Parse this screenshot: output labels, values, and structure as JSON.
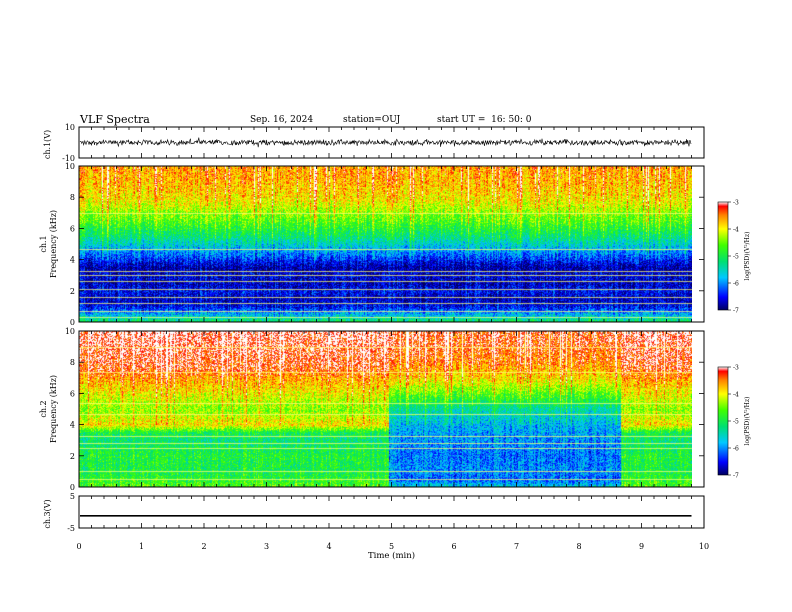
{
  "header": {
    "title": "VLF Spectra",
    "date": "Sep. 16, 2024",
    "station": "station=OUJ",
    "start": "start UT =  16: 50: 0"
  },
  "chart_data": [
    {
      "id": "ch1-waveform",
      "type": "line",
      "ylabel": "ch.1(V)",
      "ylim": [
        -10,
        10
      ],
      "y_ticks": [
        "10",
        "-10"
      ],
      "description_values": {
        "baseline": 0,
        "amplitude_peak": 2
      },
      "x_range": [
        0,
        9.8
      ]
    },
    {
      "id": "ch1-spectrogram",
      "type": "heatmap",
      "ylabel_line1": "ch.1",
      "ylabel_line2": "Frequency (kHz)",
      "ylim": [
        0,
        10
      ],
      "y_ticks": [
        "0",
        "2",
        "4",
        "6",
        "8",
        "10"
      ],
      "x_range": [
        0,
        9.8
      ],
      "colorbar": {
        "label": "log(PSD)(V²/Hz)",
        "range": [
          -7,
          -3
        ],
        "ticks": [
          "-3",
          "-4",
          "-5",
          "-6",
          "-7"
        ]
      },
      "profile_freq_khz": [
        0,
        0.5,
        1,
        1.5,
        2,
        2.5,
        3,
        3.5,
        4,
        4.5,
        5,
        5.5,
        6,
        6.5,
        7,
        7.5,
        8,
        9,
        10
      ],
      "profile_log_psd": [
        -5.0,
        -5.8,
        -6.5,
        -6.7,
        -6.5,
        -6.7,
        -6.6,
        -6.8,
        -6.4,
        -6.0,
        -5.6,
        -5.2,
        -4.9,
        -4.6,
        -4.4,
        -4.1,
        -3.9,
        -3.7,
        -3.6
      ],
      "lines_khz": [
        0.3,
        0.7,
        1.2,
        1.6,
        2.1,
        2.6,
        3.0,
        3.3,
        4.7,
        7.0
      ]
    },
    {
      "id": "ch2-spectrogram",
      "type": "heatmap",
      "ylabel_line1": "ch.2",
      "ylabel_line2": "Frequency (kHz)",
      "ylim": [
        0,
        10
      ],
      "y_ticks": [
        "0",
        "2",
        "4",
        "6",
        "8",
        "10"
      ],
      "x_range": [
        0,
        9.8
      ],
      "colorbar": {
        "label": "log(PSD)(V²/Hz)",
        "range": [
          -7,
          -3
        ],
        "ticks": [
          "-3",
          "-4",
          "-5",
          "-6",
          "-7"
        ]
      },
      "segments": [
        {
          "t_start": 0,
          "t_end": 4.95,
          "profile_freq_khz": [
            0,
            1,
            2,
            3,
            3.5,
            4,
            5,
            6,
            7,
            7.5,
            8,
            9,
            10
          ],
          "profile_log_psd": [
            -4.6,
            -5.0,
            -4.9,
            -5.2,
            -5.0,
            -3.9,
            -4.4,
            -4.0,
            -3.6,
            -3.3,
            -3.2,
            -3.1,
            -3.0
          ]
        },
        {
          "t_start": 4.95,
          "t_end": 8.65,
          "profile_freq_khz": [
            0,
            0.5,
            1,
            2,
            3,
            3.5,
            4,
            5,
            6,
            7,
            8,
            9,
            10
          ],
          "profile_log_psd": [
            -5.6,
            -6.2,
            -6.0,
            -6.1,
            -6.0,
            -5.9,
            -5.8,
            -5.4,
            -4.6,
            -3.9,
            -3.5,
            -3.3,
            -3.2
          ]
        },
        {
          "t_start": 8.65,
          "t_end": 9.8,
          "profile_freq_khz": [
            0,
            1,
            2,
            3,
            3.5,
            4,
            5,
            6,
            7,
            7.5,
            8,
            9,
            10
          ],
          "profile_log_psd": [
            -4.6,
            -5.0,
            -4.9,
            -5.2,
            -5.0,
            -3.9,
            -4.4,
            -4.0,
            -3.6,
            -3.3,
            -3.2,
            -3.1,
            -3.0
          ]
        }
      ],
      "lines_khz": [
        0.5,
        1.0,
        2.5,
        2.8,
        3.3,
        4.7,
        5.4,
        7.4,
        9.0
      ]
    },
    {
      "id": "ch3-waveform",
      "type": "line",
      "ylabel": "ch.3(V)",
      "ylim": [
        -5,
        5
      ],
      "y_ticks": [
        "5",
        "-5"
      ],
      "x_range": [
        0,
        9.8
      ],
      "constant_value": -1.2
    }
  ],
  "x_axis": {
    "xlabel": "Time (min)",
    "xlim": [
      0,
      10
    ],
    "ticks": [
      "0",
      "1",
      "2",
      "3",
      "4",
      "5",
      "6",
      "7",
      "8",
      "9",
      "10"
    ]
  }
}
